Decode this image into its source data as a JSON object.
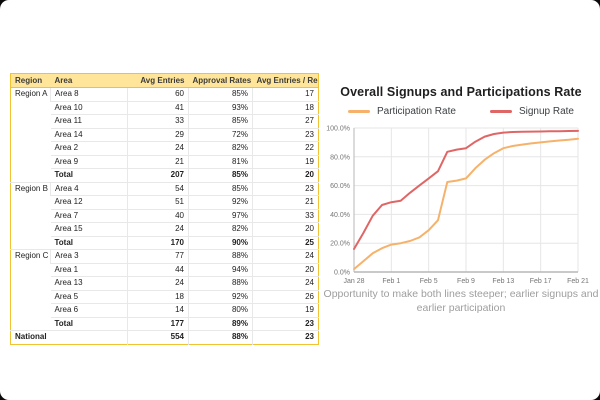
{
  "table": {
    "headers": [
      "Region",
      "Area",
      "Avg Entries",
      "Approval Rates",
      "Avg Entries / Rep"
    ],
    "header_bg": "#ffe599",
    "outer_border_color": "#f1c232",
    "grid_color": "#e8e8e8",
    "groups": [
      {
        "region": "Region A",
        "rows": [
          [
            "Area 8",
            "60",
            "85%",
            "17"
          ],
          [
            "Area 10",
            "41",
            "93%",
            "18"
          ],
          [
            "Area 11",
            "33",
            "85%",
            "27"
          ],
          [
            "Area 14",
            "29",
            "72%",
            "23"
          ],
          [
            "Area 2",
            "24",
            "82%",
            "22"
          ],
          [
            "Area 9",
            "21",
            "81%",
            "19"
          ]
        ],
        "total": [
          "Total",
          "207",
          "85%",
          "20"
        ]
      },
      {
        "region": "Region B",
        "rows": [
          [
            "Area 4",
            "54",
            "85%",
            "23"
          ],
          [
            "Area 12",
            "51",
            "92%",
            "21"
          ],
          [
            "Area 7",
            "40",
            "97%",
            "33"
          ],
          [
            "Area 15",
            "24",
            "82%",
            "20"
          ]
        ],
        "total": [
          "Total",
          "170",
          "90%",
          "25"
        ]
      },
      {
        "region": "Region C",
        "rows": [
          [
            "Area 3",
            "77",
            "88%",
            "24"
          ],
          [
            "Area 1",
            "44",
            "94%",
            "20"
          ],
          [
            "Area 13",
            "24",
            "88%",
            "24"
          ],
          [
            "Area 5",
            "18",
            "92%",
            "26"
          ],
          [
            "Area 6",
            "14",
            "80%",
            "19"
          ]
        ],
        "total": [
          "Total",
          "177",
          "89%",
          "23"
        ]
      }
    ],
    "national": {
      "label": "National",
      "values": [
        "554",
        "88%",
        "23"
      ]
    }
  },
  "chart_data": {
    "type": "line",
    "title": "Overall Signups and Participations Rate",
    "x": [
      "Jan 28",
      "Jan 29",
      "Jan 30",
      "Jan 31",
      "Feb 1",
      "Feb 2",
      "Feb 3",
      "Feb 4",
      "Feb 5",
      "Feb 6",
      "Feb 7",
      "Feb 8",
      "Feb 9",
      "Feb 10",
      "Feb 11",
      "Feb 12",
      "Feb 13",
      "Feb 14",
      "Feb 15",
      "Feb 16",
      "Feb 17",
      "Feb 18",
      "Feb 19",
      "Feb 20",
      "Feb 21"
    ],
    "x_tick_indices": [
      0,
      4,
      8,
      12,
      16,
      20,
      24
    ],
    "x_tick_labels": [
      "Jan 28",
      "Feb 1",
      "Feb 5",
      "Feb 9",
      "Feb 13",
      "Feb 17",
      "Feb 21"
    ],
    "y_ticks": [
      0,
      20,
      40,
      60,
      80,
      100
    ],
    "ylim": [
      0,
      100
    ],
    "y_tick_suffix": "%",
    "grid": true,
    "legend_position": "top",
    "series": [
      {
        "name": "Participation Rate",
        "color": "#F6B26B",
        "values": [
          2,
          7.5,
          13,
          16.5,
          19,
          20,
          21.5,
          24,
          29,
          36,
          62.5,
          63.5,
          65,
          72,
          78,
          82.5,
          86,
          87.5,
          88.5,
          89.3,
          90,
          90.7,
          91.3,
          91.8,
          92.5
        ]
      },
      {
        "name": "Signup Rate",
        "color": "#E06666",
        "values": [
          16,
          27,
          39,
          46.5,
          48.5,
          49.5,
          55,
          60,
          65,
          70,
          83.5,
          85,
          86,
          90.5,
          94,
          95.8,
          96.8,
          97.2,
          97.4,
          97.5,
          97.6,
          97.7,
          97.8,
          97.9,
          98
        ]
      }
    ],
    "annotation": "Opportunity to make both lines steeper; earlier signups and earlier participation",
    "grid_color": "#e6e6e6",
    "axis_color": "#b7b7b7",
    "tick_label_color": "#757575"
  }
}
